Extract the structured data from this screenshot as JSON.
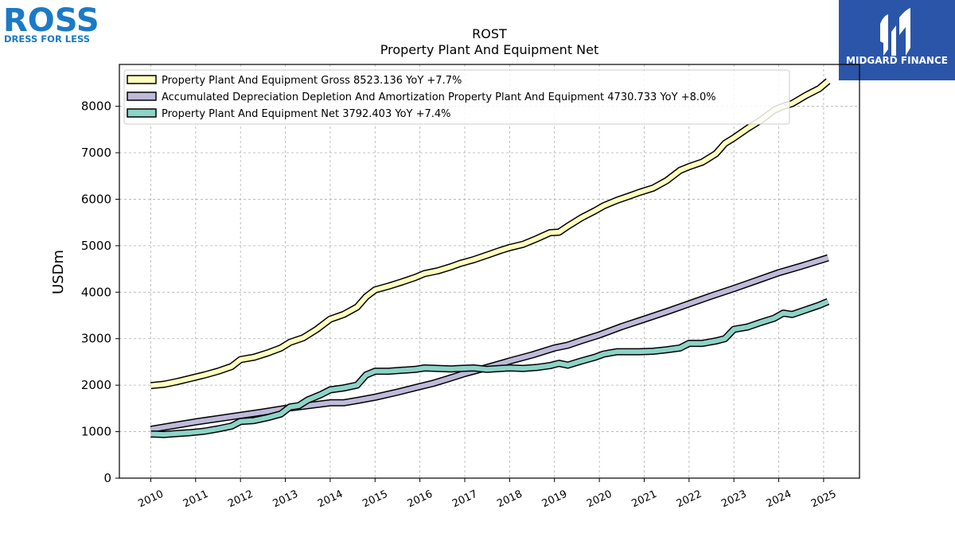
{
  "logo_left": {
    "brand": "ROSS",
    "tagline": "DRESS FOR LESS"
  },
  "logo_right": {
    "brand": "MIDGARD FINANCE"
  },
  "chart_data": {
    "type": "line",
    "title": "ROST",
    "subtitle": "Property Plant And Equipment Net",
    "ylabel": "USDm",
    "xlabel": "",
    "ylim": [
      0,
      8900
    ],
    "xlim": [
      2009.3,
      2025.8
    ],
    "yticks": [
      0,
      1000,
      2000,
      3000,
      4000,
      5000,
      6000,
      7000,
      8000
    ],
    "xticks": [
      "2010",
      "2011",
      "2012",
      "2013",
      "2014",
      "2015",
      "2016",
      "2017",
      "2018",
      "2019",
      "2020",
      "2021",
      "2022",
      "2023",
      "2024",
      "2025"
    ],
    "grid": true,
    "legend_position": "top-left",
    "series": [
      {
        "name": "Property Plant And Equipment Gross",
        "legend": "Property Plant And Equipment Gross  8523.136 YoY +7.7%",
        "color": "#ffffbf",
        "x": [
          2010.0,
          2010.3,
          2010.6,
          2010.9,
          2011.2,
          2011.5,
          2011.8,
          2012.0,
          2012.3,
          2012.6,
          2012.9,
          2013.1,
          2013.4,
          2013.7,
          2014.0,
          2014.3,
          2014.6,
          2014.8,
          2015.0,
          2015.3,
          2015.6,
          2015.9,
          2016.1,
          2016.4,
          2016.7,
          2016.9,
          2017.2,
          2017.5,
          2017.8,
          2018.0,
          2018.3,
          2018.6,
          2018.9,
          2019.1,
          2019.3,
          2019.6,
          2019.9,
          2020.1,
          2020.4,
          2020.7,
          2020.9,
          2021.2,
          2021.5,
          2021.8,
          2022.0,
          2022.3,
          2022.6,
          2022.8,
          2023.0,
          2023.3,
          2023.6,
          2023.9,
          2024.1,
          2024.3,
          2024.6,
          2024.9,
          2025.1
        ],
        "y": [
          1990,
          2020,
          2080,
          2150,
          2220,
          2300,
          2400,
          2550,
          2600,
          2690,
          2800,
          2920,
          3020,
          3200,
          3420,
          3520,
          3680,
          3900,
          4050,
          4130,
          4220,
          4320,
          4400,
          4460,
          4550,
          4620,
          4700,
          4800,
          4900,
          4960,
          5030,
          5150,
          5280,
          5290,
          5420,
          5600,
          5750,
          5860,
          5980,
          6080,
          6150,
          6240,
          6400,
          6620,
          6700,
          6800,
          6980,
          7200,
          7320,
          7520,
          7700,
          7920,
          8000,
          8060,
          8230,
          8380,
          8540
        ]
      },
      {
        "name": "Accumulated Depreciation Depletion And Amortization Property Plant And Equipment",
        "legend": "Accumulated Depreciation Depletion And Amortization Property Plant And Equipment  4730.733 YoY +8.0%",
        "color": "#bebada",
        "x": [
          2010.0,
          2010.5,
          2011.0,
          2011.5,
          2012.0,
          2012.5,
          2013.0,
          2013.5,
          2014.0,
          2014.3,
          2014.6,
          2015.0,
          2015.5,
          2016.0,
          2016.3,
          2016.6,
          2017.0,
          2017.5,
          2018.0,
          2018.5,
          2019.0,
          2019.3,
          2019.6,
          2020.0,
          2020.5,
          2021.0,
          2021.5,
          2022.0,
          2022.5,
          2023.0,
          2023.5,
          2024.0,
          2024.5,
          2025.1
        ],
        "y": [
          1050,
          1130,
          1210,
          1280,
          1350,
          1420,
          1500,
          1560,
          1620,
          1620,
          1670,
          1740,
          1850,
          1970,
          2040,
          2130,
          2250,
          2380,
          2520,
          2650,
          2800,
          2860,
          2960,
          3080,
          3260,
          3420,
          3580,
          3750,
          3920,
          4080,
          4250,
          4420,
          4560,
          4740
        ]
      },
      {
        "name": "Property Plant And Equipment Net",
        "legend": "Property Plant And Equipment Net  3792.403 YoY +7.4%",
        "color": "#8dd3c7",
        "x": [
          2010.0,
          2010.3,
          2010.6,
          2010.9,
          2011.2,
          2011.5,
          2011.8,
          2012.0,
          2012.3,
          2012.6,
          2012.9,
          2013.1,
          2013.3,
          2013.5,
          2013.8,
          2014.0,
          2014.3,
          2014.6,
          2014.8,
          2015.0,
          2015.3,
          2015.6,
          2015.9,
          2016.1,
          2016.4,
          2016.7,
          2016.9,
          2017.2,
          2017.5,
          2017.8,
          2018.0,
          2018.3,
          2018.6,
          2018.9,
          2019.1,
          2019.3,
          2019.6,
          2019.9,
          2020.1,
          2020.4,
          2020.7,
          2020.9,
          2021.2,
          2021.5,
          2021.8,
          2022.0,
          2022.3,
          2022.6,
          2022.8,
          2023.0,
          2023.3,
          2023.6,
          2023.9,
          2024.1,
          2024.3,
          2024.6,
          2024.9,
          2025.1
        ],
        "y": [
          950,
          940,
          960,
          980,
          1010,
          1060,
          1120,
          1220,
          1240,
          1300,
          1380,
          1530,
          1560,
          1680,
          1800,
          1900,
          1940,
          2000,
          2220,
          2300,
          2300,
          2320,
          2340,
          2370,
          2360,
          2350,
          2360,
          2370,
          2340,
          2360,
          2370,
          2360,
          2380,
          2420,
          2470,
          2430,
          2520,
          2600,
          2670,
          2720,
          2720,
          2720,
          2730,
          2760,
          2800,
          2900,
          2900,
          2950,
          3000,
          3200,
          3250,
          3350,
          3440,
          3550,
          3520,
          3620,
          3720,
          3800
        ]
      }
    ]
  }
}
